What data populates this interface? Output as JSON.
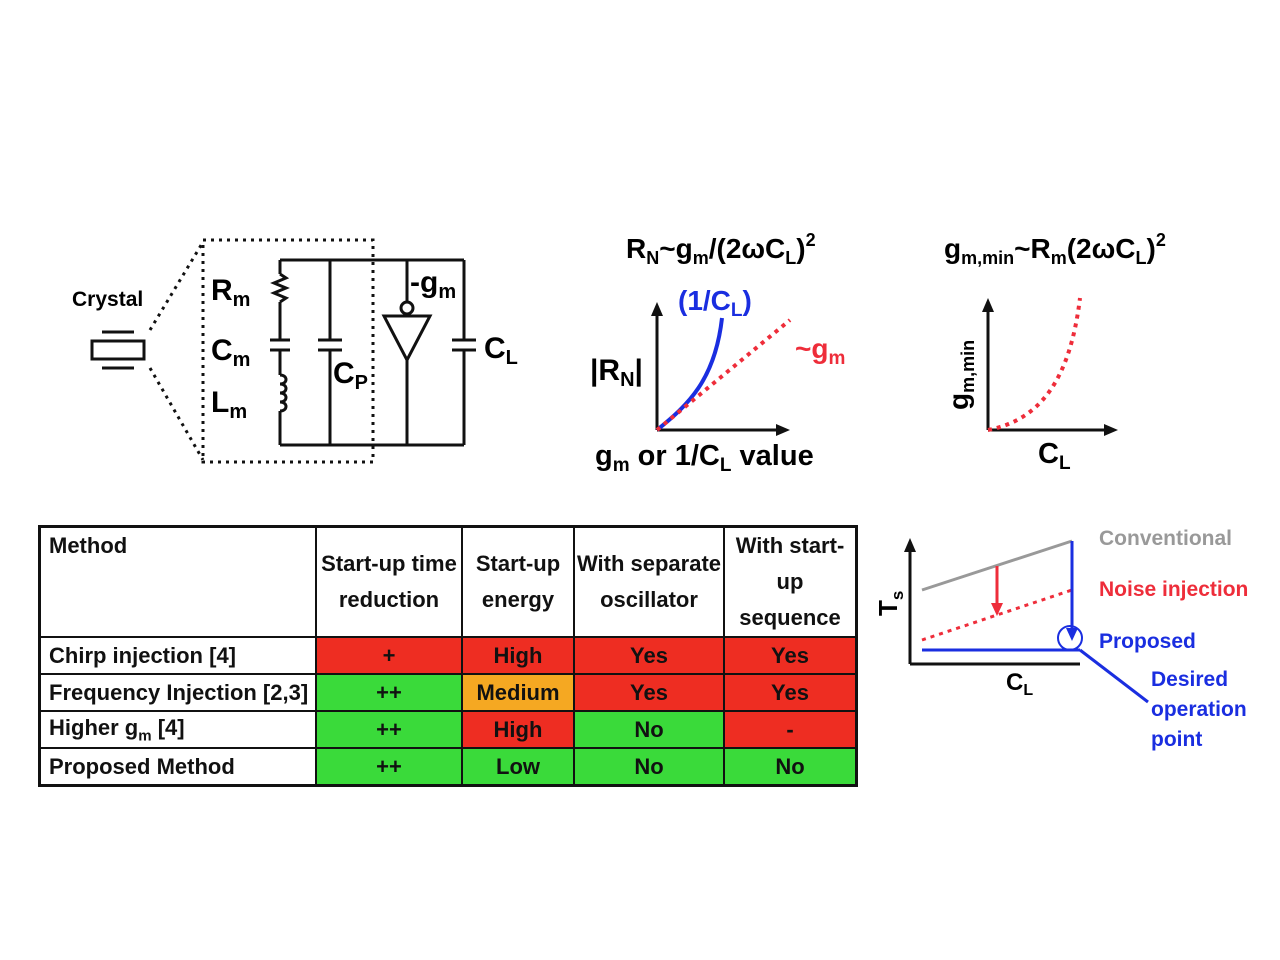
{
  "circuit": {
    "crystal_label": "Crystal",
    "rm": "R",
    "rm_sub": "m",
    "cm": "C",
    "cm_sub": "m",
    "lm": "L",
    "lm_sub": "m",
    "cp": "C",
    "cp_sub": "P",
    "gm": "-g",
    "gm_sub": "m",
    "cl": "C",
    "cl_sub": "L"
  },
  "graph_rn": {
    "eq_r": "R",
    "eq_r_sub": "N",
    "eq_mid": "~g",
    "eq_mid_sub": "m",
    "eq_tail": "/(2ωC",
    "eq_tail_sub": "L",
    "eq_end": ")",
    "eq_sup": "2",
    "ylabel": "|R",
    "ylabel_sub": "N",
    "ylabel_end": "|",
    "curve_label": "(1/C",
    "curve_label_sub": "L",
    "curve_label_end": ")",
    "line_label": "~g",
    "line_label_sub": "m",
    "xlabel_g": "g",
    "xlabel_g_sub": "m",
    "xlabel_mid": " or 1/C",
    "xlabel_sub": "L",
    "xlabel_end": " value",
    "blue": "#1a2ee0",
    "red": "#ee2d3a"
  },
  "graph_gmin": {
    "eq_g": "g",
    "eq_g_sub": "m,min",
    "eq_mid": "~R",
    "eq_mid_sub": "m",
    "eq_tail": "(2ωC",
    "eq_tail_sub": "L",
    "eq_end": ")",
    "eq_sup": "2",
    "ylabel": "g",
    "ylabel_sub": "m,min",
    "xlabel": "C",
    "xlabel_sub": "L"
  },
  "graph_ts": {
    "ylabel": "T",
    "ylabel_sub": "s",
    "xlabel": "C",
    "xlabel_sub": "L",
    "conventional": "Conventional",
    "noise": "Noise injection",
    "proposed": "Proposed",
    "desired": [
      "Desired",
      "operation",
      "point"
    ],
    "gray": "#999999",
    "red": "#ee2d3a",
    "blue": "#1a2ee0"
  },
  "table": {
    "headers": [
      [
        "Method"
      ],
      [
        "Start-up time",
        "reduction"
      ],
      [
        "Start-up",
        "energy"
      ],
      [
        "With separate",
        "oscillator"
      ],
      [
        "With start-up",
        "sequence"
      ]
    ],
    "rows": [
      {
        "name": "Chirp injection [4]",
        "cells": [
          "+",
          "High",
          "Yes",
          "Yes"
        ],
        "colors": [
          "red",
          "red",
          "red",
          "red"
        ]
      },
      {
        "name": "Frequency Injection [2,3]",
        "cells": [
          "++",
          "Medium",
          "Yes",
          "Yes"
        ],
        "colors": [
          "green",
          "orange",
          "red",
          "red"
        ]
      },
      {
        "name_pre": "Higher g",
        "name_sub": "m",
        "name_post": " [4]",
        "cells": [
          "++",
          "High",
          "No",
          "-"
        ],
        "colors": [
          "green",
          "red",
          "green",
          "red"
        ]
      },
      {
        "name": "Proposed Method",
        "cells": [
          "++",
          "Low",
          "No",
          "No"
        ],
        "colors": [
          "green",
          "green",
          "green",
          "green"
        ]
      }
    ]
  }
}
